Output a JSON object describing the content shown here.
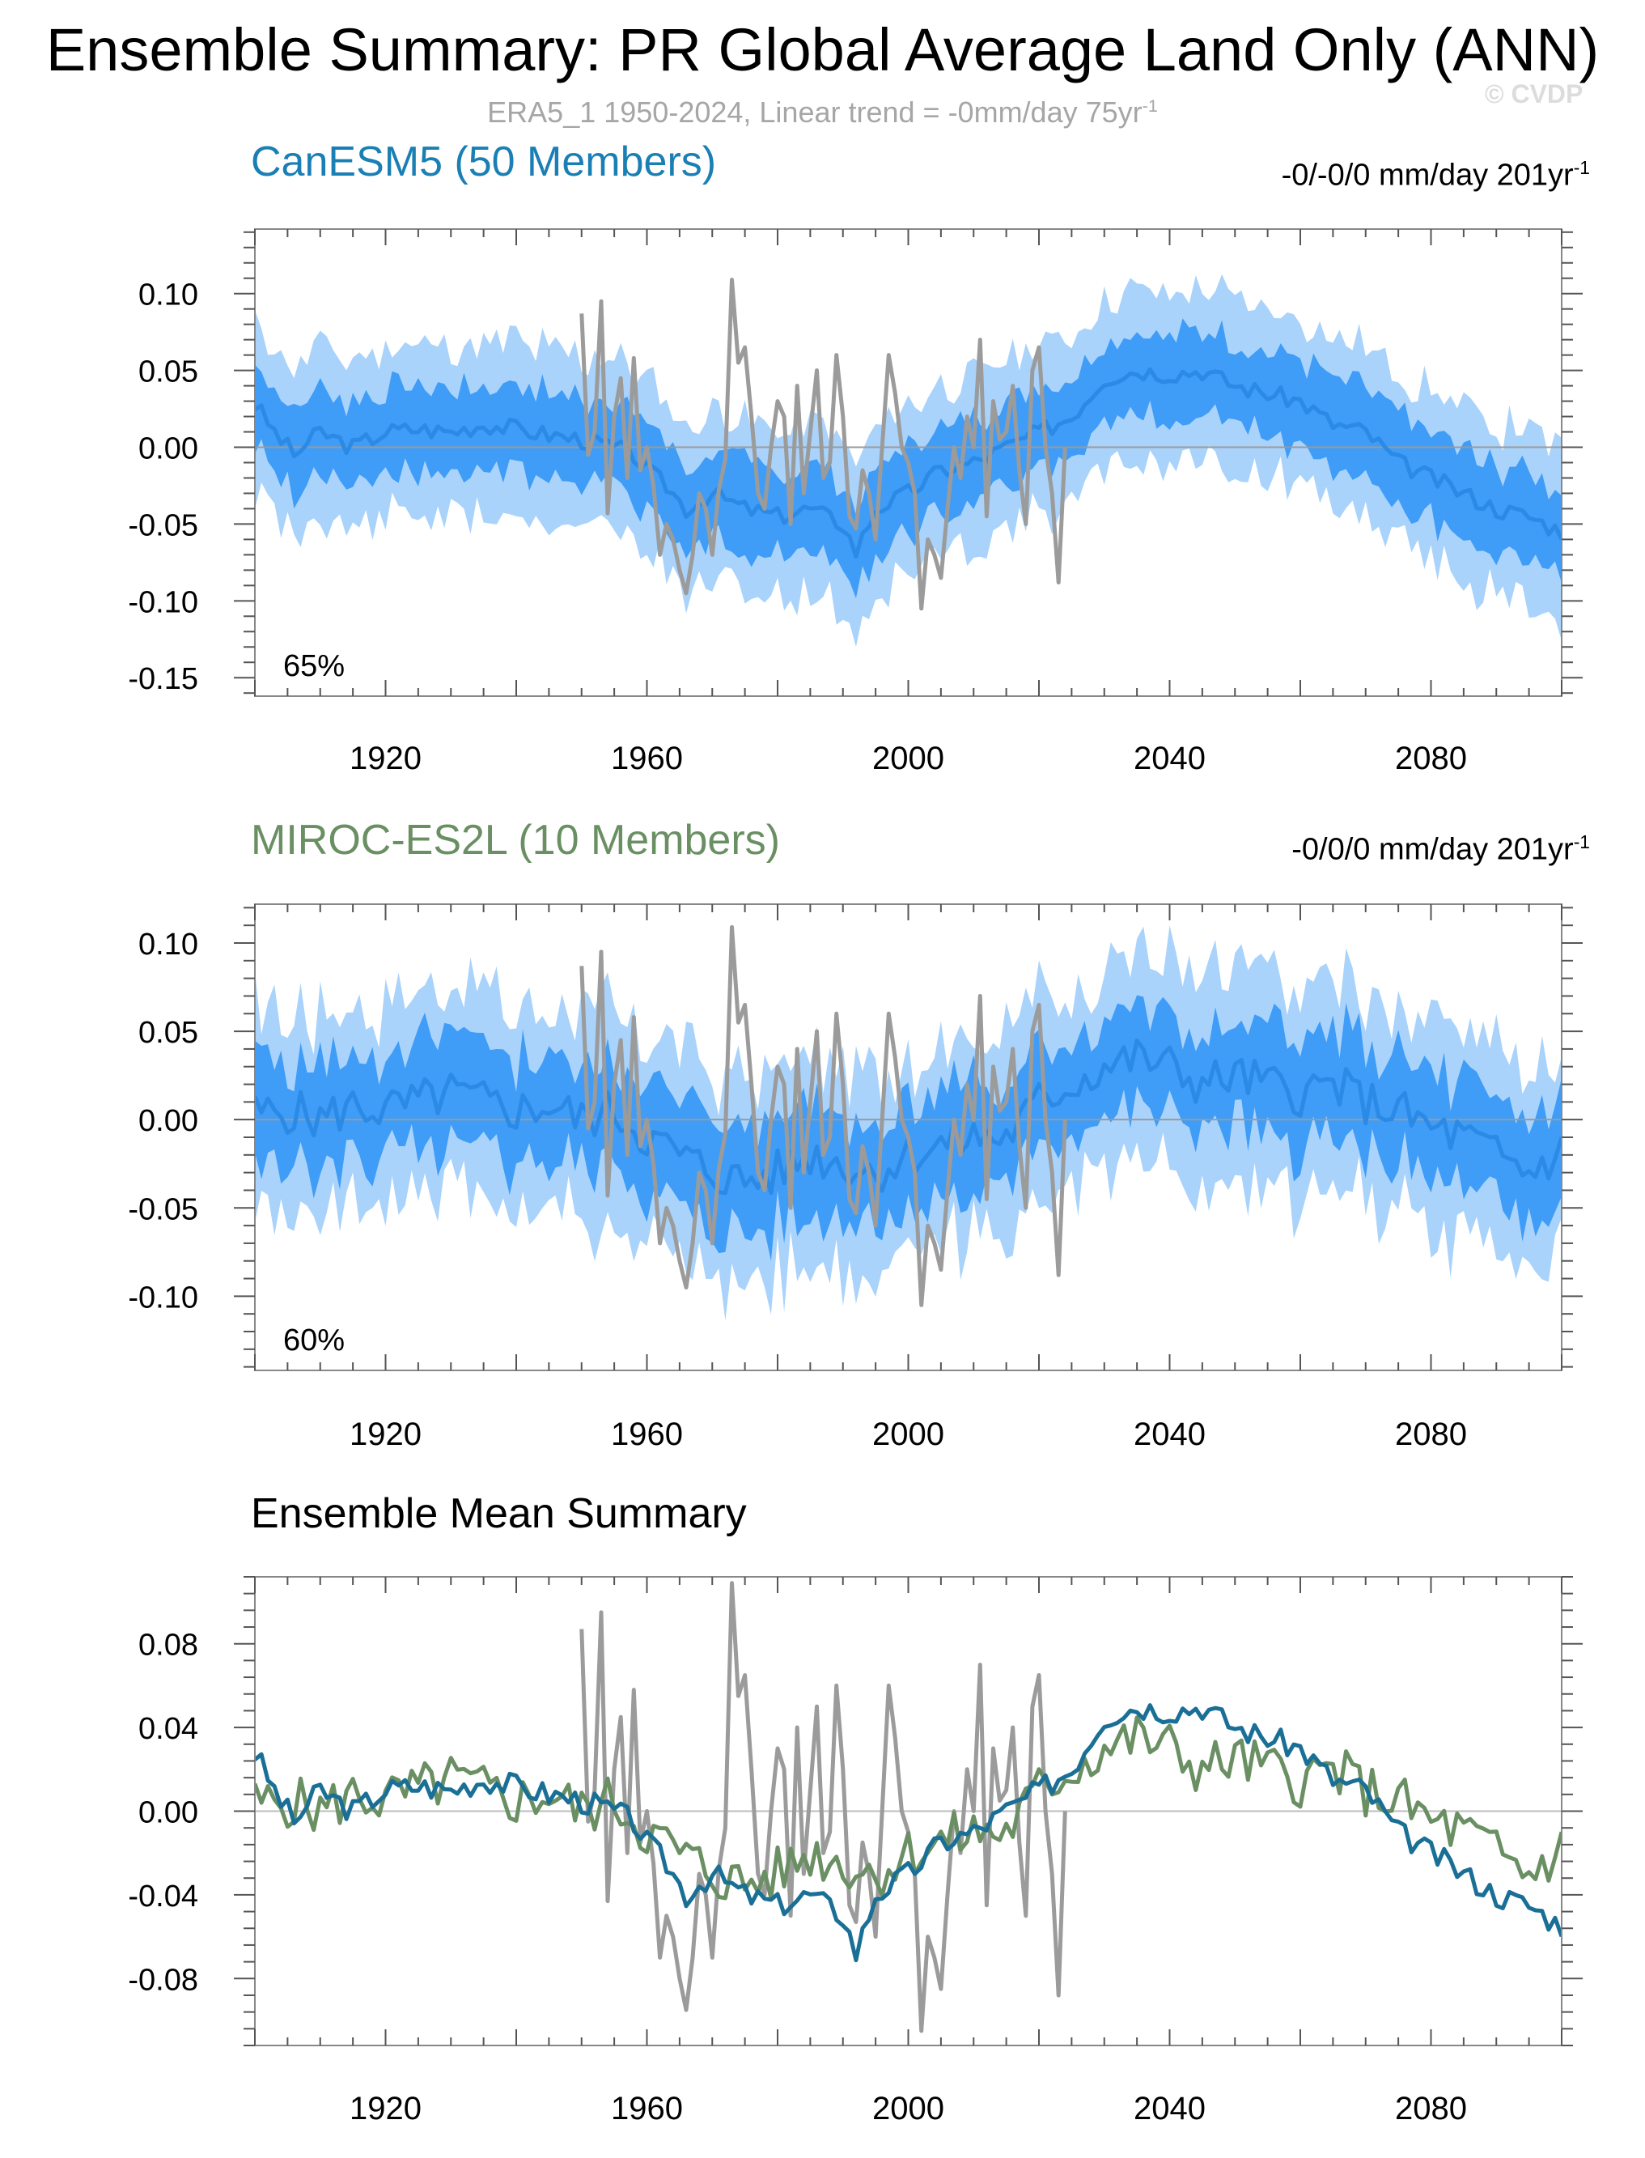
{
  "title": "Ensemble Summary: PR Global Average Land Only (ANN)",
  "subtitle": {
    "text": "ERA5_1 1950-2024, Linear trend = -0mm/day 75yr",
    "sup": "-1"
  },
  "copyright": "© CVDP",
  "colors": {
    "obs": "#9b9b9b",
    "band_outer": "#a9d3fb",
    "band_inner": "#3f9cf7",
    "mean_line": "#2a8ae6",
    "canesm5": "#1a6f96",
    "miroc": "#6a8f63",
    "zero_line": "#9a9a9a"
  },
  "chart_data": [
    {
      "type": "area",
      "id": "canesm5",
      "title": "CanESM5 (50 Members)",
      "trend_text": "-0/-0/0 mm/day 201yr",
      "trend_sup": "-1",
      "annotation": "65%",
      "xlim": [
        1900,
        2100
      ],
      "ylim": [
        -0.162,
        0.142
      ],
      "xticks": [
        1920,
        1960,
        2000,
        2040,
        2080
      ],
      "yticks": [
        0.1,
        0.05,
        0.0,
        -0.05,
        -0.1,
        -0.15
      ],
      "ytick_labels": [
        "0.10",
        "0.05",
        "0.00",
        "-0.05",
        "-0.10",
        "-0.15"
      ],
      "series": [
        {
          "role": "ensemble_mean",
          "anchors": [
            [
              1900,
              0.028
            ],
            [
              1903,
              0.01
            ],
            [
              1906,
              -0.005
            ],
            [
              1910,
              0.01
            ],
            [
              1915,
              0.0
            ],
            [
              1920,
              0.01
            ],
            [
              1925,
              0.012
            ],
            [
              1930,
              0.01
            ],
            [
              1935,
              0.015
            ],
            [
              1940,
              0.012
            ],
            [
              1945,
              0.008
            ],
            [
              1950,
              0.005
            ],
            [
              1955,
              0.0
            ],
            [
              1958,
              -0.005
            ],
            [
              1960,
              -0.015
            ],
            [
              1963,
              -0.025
            ],
            [
              1966,
              -0.04
            ],
            [
              1970,
              -0.03
            ],
            [
              1975,
              -0.04
            ],
            [
              1980,
              -0.045
            ],
            [
              1985,
              -0.04
            ],
            [
              1990,
              -0.05
            ],
            [
              1992,
              -0.068
            ],
            [
              1995,
              -0.04
            ],
            [
              2000,
              -0.03
            ],
            [
              2005,
              -0.015
            ],
            [
              2010,
              -0.01
            ],
            [
              2015,
              0.0
            ],
            [
              2020,
              0.01
            ],
            [
              2025,
              0.02
            ],
            [
              2030,
              0.045
            ],
            [
              2035,
              0.05
            ],
            [
              2040,
              0.048
            ],
            [
              2045,
              0.05
            ],
            [
              2050,
              0.04
            ],
            [
              2055,
              0.035
            ],
            [
              2060,
              0.03
            ],
            [
              2065,
              0.015
            ],
            [
              2070,
              0.01
            ],
            [
              2075,
              -0.01
            ],
            [
              2080,
              -0.02
            ],
            [
              2085,
              -0.03
            ],
            [
              2090,
              -0.04
            ],
            [
              2095,
              -0.045
            ],
            [
              2100,
              -0.055
            ]
          ],
          "amp": 0.006,
          "seed": 3
        },
        {
          "role": "band_inner_halfwidth",
          "value": 0.028,
          "amp": 0.008,
          "seed": 7
        },
        {
          "role": "band_outer_halfwidth",
          "value": 0.055,
          "amp": 0.012,
          "seed": 11
        }
      ]
    },
    {
      "type": "area",
      "id": "miroc",
      "title": "MIROC-ES2L (10 Members)",
      "trend_text": "-0/0/0 mm/day 201yr",
      "trend_sup": "-1",
      "annotation": "60%",
      "xlim": [
        1900,
        2100
      ],
      "ylim": [
        -0.142,
        0.122
      ],
      "xticks": [
        1920,
        1960,
        2000,
        2040,
        2080
      ],
      "yticks": [
        0.1,
        0.05,
        0.0,
        -0.05,
        -0.1
      ],
      "ytick_labels": [
        "0.10",
        "0.05",
        "0.00",
        "-0.05",
        "-0.10"
      ],
      "series": [
        {
          "role": "ensemble_mean",
          "anchors": [
            [
              1900,
              0.003
            ],
            [
              1905,
              0.005
            ],
            [
              1910,
              0.0
            ],
            [
              1915,
              0.008
            ],
            [
              1920,
              0.005
            ],
            [
              1925,
              0.01
            ],
            [
              1930,
              0.015
            ],
            [
              1935,
              0.01
            ],
            [
              1940,
              0.005
            ],
            [
              1945,
              0.008
            ],
            [
              1950,
              0.0
            ],
            [
              1955,
              0.005
            ],
            [
              1960,
              -0.01
            ],
            [
              1965,
              -0.02
            ],
            [
              1970,
              -0.03
            ],
            [
              1975,
              -0.035
            ],
            [
              1980,
              -0.03
            ],
            [
              1985,
              -0.02
            ],
            [
              1990,
              -0.025
            ],
            [
              1995,
              -0.03
            ],
            [
              2000,
              -0.02
            ],
            [
              2005,
              -0.015
            ],
            [
              2010,
              -0.01
            ],
            [
              2015,
              -0.01
            ],
            [
              2020,
              0.01
            ],
            [
              2025,
              0.02
            ],
            [
              2030,
              0.03
            ],
            [
              2035,
              0.035
            ],
            [
              2040,
              0.03
            ],
            [
              2045,
              0.02
            ],
            [
              2050,
              0.025
            ],
            [
              2055,
              0.02
            ],
            [
              2060,
              0.015
            ],
            [
              2065,
              0.02
            ],
            [
              2070,
              0.01
            ],
            [
              2075,
              0.005
            ],
            [
              2080,
              -0.005
            ],
            [
              2085,
              -0.01
            ],
            [
              2090,
              -0.02
            ],
            [
              2095,
              -0.03
            ],
            [
              2100,
              -0.018
            ]
          ],
          "amp": 0.013,
          "seed": 5
        },
        {
          "role": "band_inner_halfwidth",
          "value": 0.03,
          "amp": 0.01,
          "seed": 13
        },
        {
          "role": "band_outer_halfwidth",
          "value": 0.058,
          "amp": 0.016,
          "seed": 17
        }
      ]
    },
    {
      "type": "line",
      "id": "summary",
      "title": "Ensemble Mean Summary",
      "xlim": [
        1900,
        2100
      ],
      "ylim": [
        -0.112,
        0.112
      ],
      "xticks": [
        1920,
        1960,
        2000,
        2040,
        2080
      ],
      "yticks": [
        0.08,
        0.04,
        0.0,
        -0.04,
        -0.08
      ],
      "ytick_labels": [
        "0.08",
        "0.04",
        "0.00",
        "-0.04",
        "-0.08"
      ],
      "series": [
        {
          "role": "canesm5_mean"
        },
        {
          "role": "miroc_mean"
        }
      ]
    }
  ],
  "observations": {
    "name": "ERA5_1",
    "years": [
      1950,
      1951,
      1952,
      1953,
      1954,
      1955,
      1956,
      1957,
      1958,
      1959,
      1960,
      1961,
      1962,
      1963,
      1964,
      1965,
      1966,
      1967,
      1968,
      1969,
      1970,
      1971,
      1972,
      1973,
      1974,
      1975,
      1976,
      1977,
      1978,
      1979,
      1980,
      1981,
      1982,
      1983,
      1984,
      1985,
      1986,
      1987,
      1988,
      1989,
      1990,
      1991,
      1992,
      1993,
      1994,
      1995,
      1996,
      1997,
      1998,
      1999,
      2000,
      2001,
      2002,
      2003,
      2004,
      2005,
      2006,
      2007,
      2008,
      2009,
      2010,
      2011,
      2012,
      2013,
      2014,
      2015,
      2016,
      2017,
      2018,
      2019,
      2020,
      2021,
      2022,
      2023,
      2024
    ],
    "values": [
      0.087,
      -0.005,
      0.01,
      0.095,
      -0.043,
      0.02,
      0.045,
      -0.02,
      0.058,
      -0.015,
      0.0,
      -0.025,
      -0.07,
      -0.05,
      -0.06,
      -0.08,
      -0.095,
      -0.07,
      -0.03,
      -0.04,
      -0.07,
      -0.028,
      -0.008,
      0.109,
      0.055,
      0.065,
      0.02,
      -0.03,
      -0.04,
      0.0,
      0.03,
      0.02,
      -0.05,
      0.04,
      -0.03,
      0.01,
      0.05,
      -0.02,
      -0.01,
      0.06,
      0.02,
      -0.045,
      -0.053,
      -0.015,
      -0.03,
      -0.06,
      0.0,
      0.06,
      0.035,
      0.0,
      -0.01,
      -0.03,
      -0.105,
      -0.06,
      -0.07,
      -0.085,
      -0.04,
      0.0,
      -0.02,
      0.02,
      0.0,
      0.07,
      -0.045,
      0.03,
      0.005,
      0.01,
      0.04,
      -0.015,
      -0.05,
      0.05,
      0.065,
      0.0,
      -0.03,
      -0.088,
      0.0
    ]
  }
}
